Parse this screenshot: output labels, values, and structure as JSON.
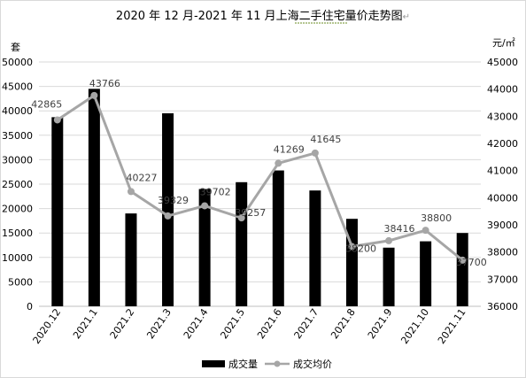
{
  "chart_data": {
    "type": "bar+line",
    "title": "2020 年 12 月-2021 年 11 月上海二手住宅量价走势图",
    "title_mark": "↵",
    "categories": [
      "2020.12",
      "2021.1",
      "2021.2",
      "2021.3",
      "2021.4",
      "2021.5",
      "2021.6",
      "2021.7",
      "2021.8",
      "2021.9",
      "2021.10",
      "2021.11"
    ],
    "left_axis": {
      "unit": "套",
      "min": 0,
      "max": 50000,
      "step": 5000,
      "ticks": [
        "0",
        "5000",
        "10000",
        "15000",
        "20000",
        "25000",
        "30000",
        "35000",
        "40000",
        "45000",
        "50000"
      ]
    },
    "right_axis": {
      "unit": "元/㎡",
      "min": 36000,
      "max": 45000,
      "step": 1000,
      "ticks": [
        "36000",
        "37000",
        "38000",
        "39000",
        "40000",
        "41000",
        "42000",
        "43000",
        "44000",
        "45000"
      ]
    },
    "series": [
      {
        "name": "成交量",
        "type": "bar",
        "axis": "left",
        "color": "#000000",
        "values": [
          38700,
          44500,
          19000,
          39500,
          24000,
          25400,
          27800,
          23700,
          17900,
          12000,
          13300,
          15000
        ]
      },
      {
        "name": "成交均价",
        "type": "line",
        "axis": "right",
        "color": "#a6a6a6",
        "values": [
          42865,
          43766,
          40227,
          39329,
          39702,
          39257,
          41269,
          41645,
          38200,
          38416,
          38800,
          37700
        ],
        "labels": [
          "42865",
          "43766",
          "40227",
          "39329",
          "39702",
          "39257",
          "41269",
          "41645",
          "38200",
          "38416",
          "38800",
          "37700"
        ]
      }
    ],
    "grid": "horizontal",
    "legend_position": "bottom"
  }
}
